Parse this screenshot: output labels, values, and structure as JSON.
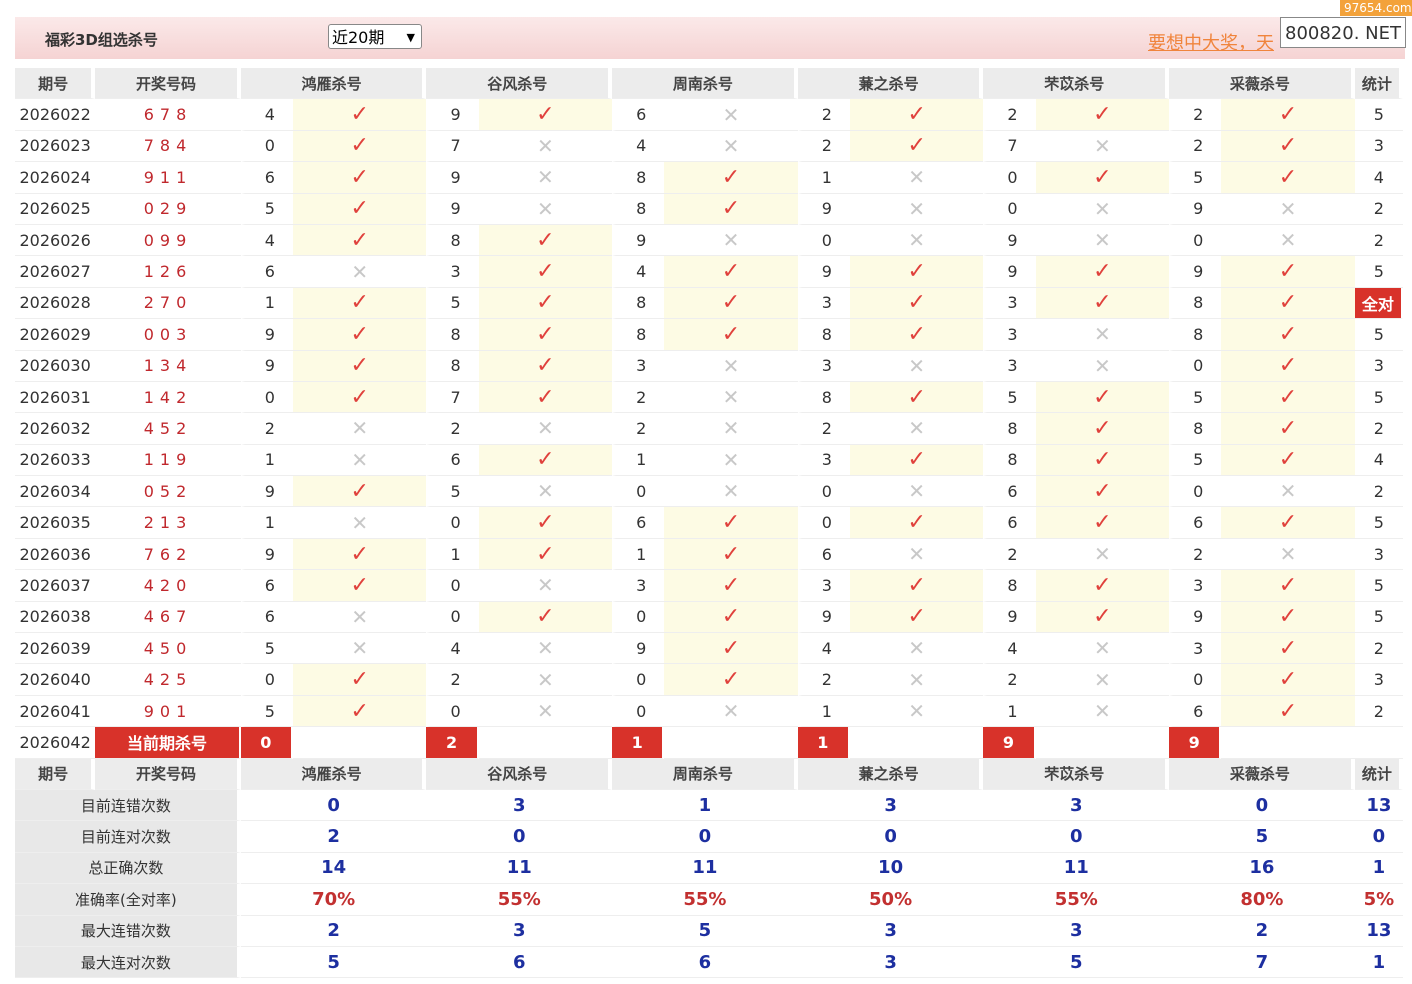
{
  "header": {
    "title": "福彩3D组选杀号",
    "period_select": "近20期",
    "marquee": "要想中大奖，天",
    "watermark": "800820. NET",
    "watermark_site": "97654.com"
  },
  "table": {
    "columns": [
      "期号",
      "开奖号码",
      "鸿雁杀号",
      "谷风杀号",
      "周南杀号",
      "蒹之杀号",
      "芣苡杀号",
      "采薇杀号",
      "统计"
    ],
    "rows": [
      {
        "period": "2026022",
        "number": "678",
        "kills": [
          [
            4,
            "✓"
          ],
          [
            9,
            "✓"
          ],
          [
            6,
            "✕"
          ],
          [
            2,
            "✓"
          ],
          [
            2,
            "✓"
          ],
          [
            2,
            "✓"
          ]
        ],
        "stat": 5
      },
      {
        "period": "2026023",
        "number": "784",
        "kills": [
          [
            0,
            "✓"
          ],
          [
            7,
            "✕"
          ],
          [
            4,
            "✕"
          ],
          [
            2,
            "✓"
          ],
          [
            7,
            "✕"
          ],
          [
            2,
            "✓"
          ]
        ],
        "stat": 3
      },
      {
        "period": "2026024",
        "number": "911",
        "kills": [
          [
            6,
            "✓"
          ],
          [
            9,
            "✕"
          ],
          [
            8,
            "✓"
          ],
          [
            1,
            "✕"
          ],
          [
            0,
            "✓"
          ],
          [
            5,
            "✓"
          ]
        ],
        "stat": 4
      },
      {
        "period": "2026025",
        "number": "029",
        "kills": [
          [
            5,
            "✓"
          ],
          [
            9,
            "✕"
          ],
          [
            8,
            "✓"
          ],
          [
            9,
            "✕"
          ],
          [
            0,
            "✕"
          ],
          [
            9,
            "✕"
          ]
        ],
        "stat": 2
      },
      {
        "period": "2026026",
        "number": "099",
        "kills": [
          [
            4,
            "✓"
          ],
          [
            8,
            "✓"
          ],
          [
            9,
            "✕"
          ],
          [
            0,
            "✕"
          ],
          [
            9,
            "✕"
          ],
          [
            0,
            "✕"
          ]
        ],
        "stat": 2
      },
      {
        "period": "2026027",
        "number": "126",
        "kills": [
          [
            6,
            "✕"
          ],
          [
            3,
            "✓"
          ],
          [
            4,
            "✓"
          ],
          [
            9,
            "✓"
          ],
          [
            9,
            "✓"
          ],
          [
            9,
            "✓"
          ]
        ],
        "stat": 5
      },
      {
        "period": "2026028",
        "number": "270",
        "kills": [
          [
            1,
            "✓"
          ],
          [
            5,
            "✓"
          ],
          [
            8,
            "✓"
          ],
          [
            3,
            "✓"
          ],
          [
            3,
            "✓"
          ],
          [
            8,
            "✓"
          ]
        ],
        "stat": "全对"
      },
      {
        "period": "2026029",
        "number": "003",
        "kills": [
          [
            9,
            "✓"
          ],
          [
            8,
            "✓"
          ],
          [
            8,
            "✓"
          ],
          [
            8,
            "✓"
          ],
          [
            3,
            "✕"
          ],
          [
            8,
            "✓"
          ]
        ],
        "stat": 5
      },
      {
        "period": "2026030",
        "number": "134",
        "kills": [
          [
            9,
            "✓"
          ],
          [
            8,
            "✓"
          ],
          [
            3,
            "✕"
          ],
          [
            3,
            "✕"
          ],
          [
            3,
            "✕"
          ],
          [
            0,
            "✓"
          ]
        ],
        "stat": 3
      },
      {
        "period": "2026031",
        "number": "142",
        "kills": [
          [
            0,
            "✓"
          ],
          [
            7,
            "✓"
          ],
          [
            2,
            "✕"
          ],
          [
            8,
            "✓"
          ],
          [
            5,
            "✓"
          ],
          [
            5,
            "✓"
          ]
        ],
        "stat": 5
      },
      {
        "period": "2026032",
        "number": "452",
        "kills": [
          [
            2,
            "✕"
          ],
          [
            2,
            "✕"
          ],
          [
            2,
            "✕"
          ],
          [
            2,
            "✕"
          ],
          [
            8,
            "✓"
          ],
          [
            8,
            "✓"
          ]
        ],
        "stat": 2
      },
      {
        "period": "2026033",
        "number": "119",
        "kills": [
          [
            1,
            "✕"
          ],
          [
            6,
            "✓"
          ],
          [
            1,
            "✕"
          ],
          [
            3,
            "✓"
          ],
          [
            8,
            "✓"
          ],
          [
            5,
            "✓"
          ]
        ],
        "stat": 4
      },
      {
        "period": "2026034",
        "number": "052",
        "kills": [
          [
            9,
            "✓"
          ],
          [
            5,
            "✕"
          ],
          [
            0,
            "✕"
          ],
          [
            0,
            "✕"
          ],
          [
            6,
            "✓"
          ],
          [
            0,
            "✕"
          ]
        ],
        "stat": 2
      },
      {
        "period": "2026035",
        "number": "213",
        "kills": [
          [
            1,
            "✕"
          ],
          [
            0,
            "✓"
          ],
          [
            6,
            "✓"
          ],
          [
            0,
            "✓"
          ],
          [
            6,
            "✓"
          ],
          [
            6,
            "✓"
          ]
        ],
        "stat": 5
      },
      {
        "period": "2026036",
        "number": "762",
        "kills": [
          [
            9,
            "✓"
          ],
          [
            1,
            "✓"
          ],
          [
            1,
            "✓"
          ],
          [
            6,
            "✕"
          ],
          [
            2,
            "✕"
          ],
          [
            2,
            "✕"
          ]
        ],
        "stat": 3
      },
      {
        "period": "2026037",
        "number": "420",
        "kills": [
          [
            6,
            "✓"
          ],
          [
            0,
            "✕"
          ],
          [
            3,
            "✓"
          ],
          [
            3,
            "✓"
          ],
          [
            8,
            "✓"
          ],
          [
            3,
            "✓"
          ]
        ],
        "stat": 5
      },
      {
        "period": "2026038",
        "number": "467",
        "kills": [
          [
            6,
            "✕"
          ],
          [
            0,
            "✓"
          ],
          [
            0,
            "✓"
          ],
          [
            9,
            "✓"
          ],
          [
            9,
            "✓"
          ],
          [
            9,
            "✓"
          ]
        ],
        "stat": 5
      },
      {
        "period": "2026039",
        "number": "450",
        "kills": [
          [
            5,
            "✕"
          ],
          [
            4,
            "✕"
          ],
          [
            9,
            "✓"
          ],
          [
            4,
            "✕"
          ],
          [
            4,
            "✕"
          ],
          [
            3,
            "✓"
          ]
        ],
        "stat": 2
      },
      {
        "period": "2026040",
        "number": "425",
        "kills": [
          [
            0,
            "✓"
          ],
          [
            2,
            "✕"
          ],
          [
            0,
            "✓"
          ],
          [
            2,
            "✕"
          ],
          [
            2,
            "✕"
          ],
          [
            0,
            "✓"
          ]
        ],
        "stat": 3
      },
      {
        "period": "2026041",
        "number": "901",
        "kills": [
          [
            5,
            "✓"
          ],
          [
            0,
            "✕"
          ],
          [
            0,
            "✕"
          ],
          [
            1,
            "✕"
          ],
          [
            1,
            "✕"
          ],
          [
            6,
            "✓"
          ]
        ],
        "stat": 2
      }
    ],
    "current": {
      "period": "2026042",
      "label": "当前期杀号",
      "kills": [
        0,
        2,
        1,
        1,
        9,
        9
      ]
    },
    "summary": [
      {
        "label": "目前连错次数",
        "values": [
          0,
          3,
          1,
          3,
          3,
          0,
          13
        ]
      },
      {
        "label": "目前连对次数",
        "values": [
          2,
          0,
          0,
          0,
          0,
          5,
          0
        ]
      },
      {
        "label": "总正确次数",
        "values": [
          14,
          11,
          11,
          10,
          11,
          16,
          1
        ]
      },
      {
        "label": "准确率(全对率)",
        "values": [
          "70%",
          "55%",
          "55%",
          "50%",
          "55%",
          "80%",
          "5%"
        ]
      },
      {
        "label": "最大连错次数",
        "values": [
          2,
          3,
          5,
          3,
          3,
          2,
          13
        ]
      },
      {
        "label": "最大连对次数",
        "values": [
          5,
          6,
          6,
          3,
          5,
          7,
          1
        ]
      }
    ]
  }
}
